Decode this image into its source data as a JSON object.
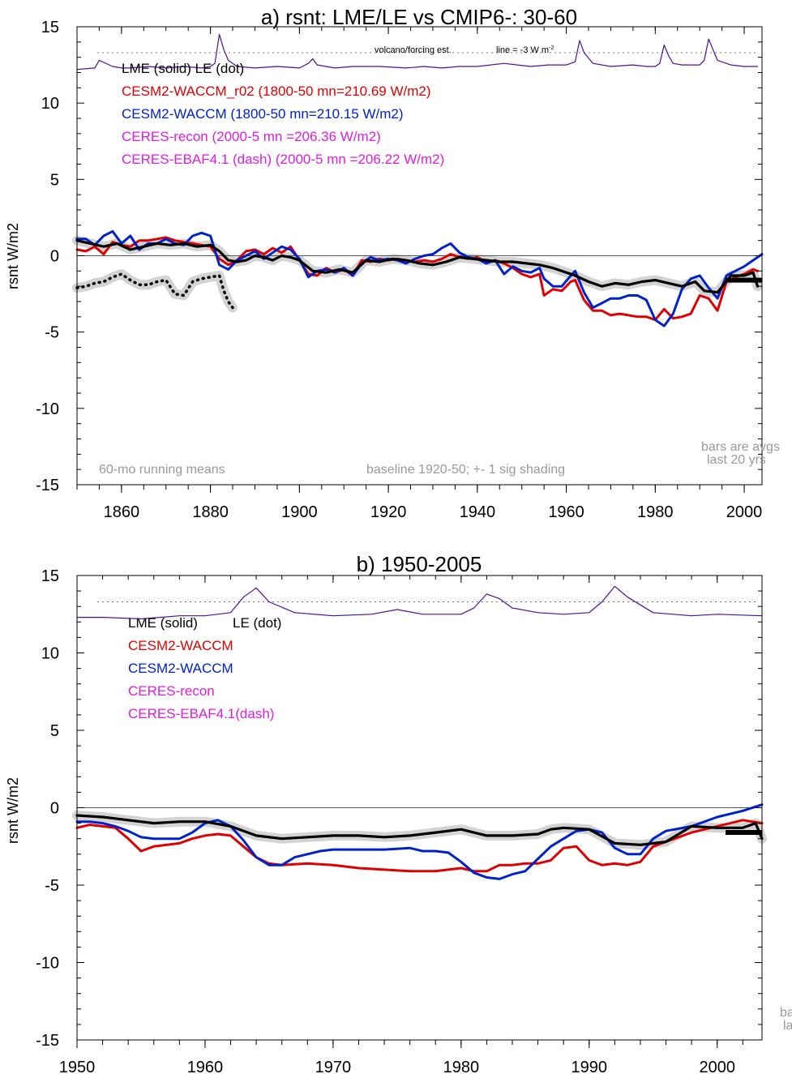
{
  "colors": {
    "lme": "#000000",
    "r02": "#e00000",
    "cesm2": "#0022cc",
    "ceres": "#e01ce0",
    "volcano": "#4b0fa0",
    "zero": "#555555",
    "dotline": "#777777",
    "note": "#999999",
    "shade": "#c8c8c8"
  },
  "chart_data": [
    {
      "type": "line",
      "title": "a) rsnt: LME/LE vs CMIP6-: 30-60",
      "ylabel": "rsnt W/m2",
      "xlim": [
        1850,
        2004
      ],
      "ylim": [
        -15,
        15
      ],
      "xticks": [
        1860,
        1880,
        1900,
        1920,
        1940,
        1960,
        1980,
        2000
      ],
      "yticks": [
        -15,
        -10,
        -5,
        0,
        5,
        10,
        15
      ],
      "grid": false,
      "legend_placement": "top-left",
      "legend": [
        {
          "text": "LME (solid)   LE (dot)",
          "color": "#000000"
        },
        {
          "text": "CESM2-WACCM_r02 (1800-50 mn=210.69 W/m2)",
          "color": "#e00000"
        },
        {
          "text": "CESM2-WACCM (1800-50 mn=210.15 W/m2)",
          "color": "#0022cc"
        },
        {
          "text": "CERES-recon (2000-5 mn =206.36 W/m2)",
          "color": "#e01ce0"
        },
        {
          "text": "CERES-EBAF4.1 (dash) (2000-5 mn =206.22 W/m2)",
          "color": "#e01ce0"
        }
      ],
      "annotations": {
        "volcano_label": "volcano/forcing est.",
        "line_label": "line = -3 W m",
        "line_label_sup": "-2",
        "running_means": "60-mo running means",
        "baseline": "baseline 1920-50; +- 1 sig shading",
        "bars_line1": "bars are avgs",
        "bars_line2": "last 20 yrs"
      },
      "dotted_reference_y": 13.3,
      "bar_avg_y": -1.6,
      "series": [
        {
          "key": "volcano",
          "style": "solid",
          "x": [
            1850,
            1854,
            1855,
            1858,
            1860,
            1862,
            1866,
            1870,
            1874,
            1878,
            1880,
            1881,
            1882,
            1883,
            1884,
            1886,
            1890,
            1895,
            1900,
            1902,
            1903,
            1904,
            1908,
            1912,
            1918,
            1924,
            1928,
            1932,
            1936,
            1940,
            1946,
            1952,
            1956,
            1960,
            1962,
            1963,
            1964,
            1966,
            1970,
            1975,
            1978,
            1980,
            1981,
            1982,
            1983,
            1984,
            1986,
            1990,
            1991,
            1992,
            1993,
            1994,
            1997,
            2000,
            2003
          ],
          "y": [
            12.2,
            12.3,
            12.8,
            12.4,
            12.3,
            12.3,
            12.4,
            12.3,
            12.4,
            12.3,
            12.4,
            12.6,
            14.5,
            13.5,
            12.8,
            12.4,
            12.3,
            12.4,
            12.3,
            12.6,
            12.9,
            12.5,
            12.3,
            12.4,
            12.4,
            12.3,
            12.4,
            12.3,
            12.4,
            12.4,
            12.6,
            12.4,
            12.5,
            12.5,
            12.7,
            14.1,
            13.3,
            12.6,
            12.4,
            12.5,
            12.4,
            12.4,
            12.6,
            13.8,
            13.1,
            12.6,
            12.5,
            12.5,
            12.8,
            14.2,
            13.5,
            12.8,
            12.5,
            12.4,
            12.4
          ]
        },
        {
          "key": "r02",
          "style": "solid",
          "x": [
            1850,
            1852,
            1854,
            1856,
            1858,
            1860,
            1862,
            1864,
            1866,
            1868,
            1870,
            1872,
            1874,
            1876,
            1878,
            1880,
            1882,
            1884,
            1886,
            1888,
            1890,
            1892,
            1894,
            1896,
            1898,
            1900,
            1902,
            1904,
            1906,
            1908,
            1910,
            1912,
            1914,
            1916,
            1918,
            1920,
            1922,
            1924,
            1926,
            1928,
            1930,
            1932,
            1934,
            1936,
            1938,
            1940,
            1942,
            1944,
            1946,
            1948,
            1950,
            1952,
            1954,
            1955,
            1957,
            1959,
            1961,
            1962,
            1964,
            1966,
            1968,
            1970,
            1972,
            1974,
            1976,
            1978,
            1980,
            1982,
            1984,
            1986,
            1988,
            1990,
            1992,
            1994,
            1996,
            1998,
            2000,
            2002,
            2003
          ],
          "y": [
            0.4,
            0.3,
            0.6,
            0.1,
            0.9,
            0.7,
            0.6,
            1.0,
            1.0,
            1.1,
            1.2,
            1.0,
            0.9,
            0.8,
            0.7,
            0.6,
            -0.2,
            -0.6,
            -0.3,
            0.3,
            0.4,
            0.1,
            0.5,
            0.2,
            0.6,
            -0.3,
            -1.2,
            -1.3,
            -0.8,
            -1.1,
            -0.9,
            -1.3,
            -0.3,
            -0.4,
            -0.2,
            -0.3,
            -0.2,
            -0.3,
            -0.4,
            -0.3,
            -0.4,
            -0.2,
            0.1,
            -0.1,
            -0.2,
            -0.1,
            -0.4,
            -0.3,
            -0.5,
            -0.8,
            -1.2,
            -1.4,
            -1.2,
            -2.6,
            -2.2,
            -2.3,
            -1.7,
            -1.6,
            -2.9,
            -3.6,
            -3.6,
            -3.9,
            -3.8,
            -3.9,
            -4.0,
            -4.0,
            -4.2,
            -3.5,
            -4.1,
            -4.0,
            -3.8,
            -2.6,
            -2.8,
            -3.6,
            -1.7,
            -1.4,
            -1.2,
            -0.9,
            -1.0
          ]
        },
        {
          "key": "cesm2",
          "style": "solid",
          "x": [
            1850,
            1852,
            1854,
            1856,
            1858,
            1860,
            1862,
            1864,
            1866,
            1868,
            1870,
            1872,
            1874,
            1876,
            1878,
            1880,
            1882,
            1884,
            1886,
            1888,
            1890,
            1892,
            1894,
            1896,
            1898,
            1900,
            1902,
            1904,
            1906,
            1908,
            1910,
            1912,
            1914,
            1916,
            1918,
            1920,
            1922,
            1924,
            1926,
            1928,
            1930,
            1932,
            1934,
            1936,
            1938,
            1940,
            1942,
            1944,
            1946,
            1948,
            1950,
            1952,
            1954,
            1955,
            1957,
            1959,
            1961,
            1962,
            1964,
            1966,
            1968,
            1970,
            1972,
            1974,
            1976,
            1978,
            1980,
            1982,
            1984,
            1986,
            1988,
            1990,
            1992,
            1994,
            1996,
            1998,
            2000,
            2002,
            2004
          ],
          "y": [
            1.1,
            1.1,
            0.7,
            1.3,
            1.6,
            0.8,
            1.3,
            0.4,
            0.8,
            0.8,
            1.1,
            0.8,
            0.7,
            1.3,
            1.5,
            1.3,
            -0.6,
            -0.9,
            -0.3,
            0.0,
            0.3,
            -0.2,
            0.2,
            0.6,
            0.4,
            -0.2,
            -1.4,
            -1.0,
            -0.9,
            -1.1,
            -0.8,
            -1.3,
            -0.5,
            -0.1,
            -0.3,
            -0.2,
            -0.3,
            -0.5,
            -0.2,
            0.0,
            0.1,
            0.5,
            0.8,
            0.2,
            -0.1,
            -0.2,
            -0.5,
            -0.3,
            -1.2,
            -0.7,
            -1.0,
            -1.1,
            -0.8,
            -1.5,
            -2.0,
            -2.0,
            -1.3,
            -1.0,
            -2.4,
            -3.4,
            -3.1,
            -2.8,
            -2.8,
            -2.6,
            -2.6,
            -2.9,
            -4.2,
            -4.6,
            -3.8,
            -2.2,
            -1.5,
            -1.3,
            -2.1,
            -2.8,
            -1.3,
            -1.0,
            -0.7,
            -0.3,
            0.1
          ]
        },
        {
          "key": "lme",
          "style": "solid",
          "x": [
            1850,
            1853,
            1856,
            1859,
            1862,
            1865,
            1868,
            1871,
            1874,
            1877,
            1880,
            1882,
            1884,
            1886,
            1888,
            1890,
            1892,
            1894,
            1896,
            1898,
            1900,
            1903,
            1906,
            1909,
            1912,
            1915,
            1918,
            1921,
            1924,
            1927,
            1930,
            1933,
            1936,
            1939,
            1942,
            1945,
            1948,
            1951,
            1954,
            1957,
            1960,
            1962,
            1965,
            1968,
            1971,
            1974,
            1977,
            1980,
            1983,
            1986,
            1989,
            1991,
            1994,
            1997,
            2000,
            2002,
            2003
          ],
          "y": [
            1.0,
            0.8,
            0.6,
            0.8,
            0.4,
            0.6,
            0.8,
            0.7,
            0.8,
            0.6,
            0.7,
            0.3,
            -0.3,
            -0.4,
            -0.3,
            0.0,
            -0.1,
            -0.3,
            0.0,
            -0.1,
            -0.3,
            -1.0,
            -1.1,
            -0.9,
            -1.1,
            -0.3,
            -0.4,
            -0.2,
            -0.3,
            -0.5,
            -0.6,
            -0.4,
            -0.1,
            -0.2,
            -0.3,
            -0.4,
            -0.4,
            -0.5,
            -0.6,
            -0.8,
            -1.1,
            -1.3,
            -1.7,
            -2.0,
            -1.8,
            -1.9,
            -1.7,
            -1.6,
            -1.8,
            -2.0,
            -1.7,
            -2.3,
            -2.4,
            -1.3,
            -1.3,
            -1.1,
            -2.0
          ]
        },
        {
          "key": "le",
          "style": "dot",
          "x": [
            1850,
            1852,
            1854,
            1856,
            1858,
            1860,
            1862,
            1864,
            1866,
            1868,
            1870,
            1872,
            1874,
            1876,
            1878,
            1880,
            1882,
            1883,
            1884,
            1885
          ],
          "y": [
            -2.1,
            -2.0,
            -1.8,
            -1.7,
            -1.4,
            -1.2,
            -1.6,
            -1.9,
            -1.9,
            -1.7,
            -1.6,
            -2.5,
            -2.6,
            -1.7,
            -1.5,
            -1.4,
            -1.3,
            -2.3,
            -3.0,
            -3.4
          ]
        }
      ]
    },
    {
      "type": "line",
      "title": "b) 1950-2005",
      "ylabel": "rsnt W/m2",
      "xlim": [
        1950,
        2003.5
      ],
      "ylim": [
        -15,
        15
      ],
      "xticks": [
        1950,
        1960,
        1970,
        1980,
        1990,
        2000
      ],
      "yticks": [
        -15,
        -10,
        -5,
        0,
        5,
        10,
        15
      ],
      "grid": false,
      "legend_placement": "top-left",
      "legend": [
        {
          "text": "LME (solid)",
          "color": "#000000"
        },
        {
          "text": "LE (dot)",
          "color": "#000000"
        },
        {
          "text": "CESM2-WACCM",
          "color": "#e00000"
        },
        {
          "text": "CESM2-WACCM",
          "color": "#0022cc"
        },
        {
          "text": "CERES-recon",
          "color": "#e01ce0"
        },
        {
          "text": "CERES-EBAF4.1(dash)",
          "color": "#e01ce0"
        }
      ],
      "annotations": {
        "bars_line1": "ba",
        "bars_line2": "la"
      },
      "dotted_reference_y": 13.3,
      "bar_avg_y": -1.6,
      "series": [
        {
          "key": "volcano",
          "style": "solid",
          "x": [
            1950,
            1952,
            1955,
            1958,
            1960,
            1962,
            1963,
            1964,
            1965,
            1967,
            1970,
            1973,
            1975,
            1977,
            1980,
            1981,
            1982,
            1983,
            1984,
            1986,
            1988,
            1990,
            1991,
            1992,
            1993,
            1995,
            1998,
            2000,
            2003.5
          ],
          "y": [
            12.3,
            12.3,
            12.2,
            12.4,
            12.4,
            12.6,
            13.6,
            14.2,
            13.3,
            12.6,
            12.4,
            12.5,
            12.8,
            12.5,
            12.5,
            12.9,
            13.8,
            13.5,
            12.9,
            12.6,
            12.5,
            12.6,
            13.3,
            14.3,
            13.6,
            12.6,
            12.4,
            12.5,
            12.4
          ]
        },
        {
          "key": "r02",
          "style": "solid",
          "x": [
            1950,
            1951,
            1953,
            1954,
            1955,
            1956,
            1958,
            1959,
            1960,
            1961,
            1962,
            1963,
            1964,
            1965,
            1966,
            1968,
            1970,
            1972,
            1974,
            1976,
            1978,
            1980,
            1981,
            1982,
            1983,
            1984,
            1985,
            1986,
            1987,
            1988,
            1989,
            1990,
            1991,
            1992,
            1993,
            1994,
            1995,
            1996,
            1998,
            2000,
            2002,
            2003.5
          ],
          "y": [
            -1.3,
            -1.1,
            -1.3,
            -2.0,
            -2.8,
            -2.5,
            -2.3,
            -2.0,
            -1.8,
            -1.7,
            -1.8,
            -2.5,
            -3.2,
            -3.6,
            -3.7,
            -3.6,
            -3.7,
            -3.9,
            -4.0,
            -4.1,
            -4.1,
            -3.9,
            -4.1,
            -4.1,
            -3.7,
            -3.7,
            -3.6,
            -3.6,
            -3.4,
            -2.6,
            -2.5,
            -3.4,
            -3.7,
            -3.6,
            -3.7,
            -3.5,
            -2.5,
            -2.2,
            -1.6,
            -1.2,
            -0.8,
            -1.0
          ]
        },
        {
          "key": "cesm2",
          "style": "solid",
          "x": [
            1950,
            1951,
            1952,
            1953,
            1954,
            1955,
            1956,
            1958,
            1959,
            1960,
            1961,
            1962,
            1963,
            1964,
            1965,
            1966,
            1967,
            1968,
            1969,
            1970,
            1972,
            1974,
            1976,
            1977,
            1978,
            1979,
            1980,
            1981,
            1982,
            1983,
            1984,
            1985,
            1986,
            1987,
            1988,
            1989,
            1990,
            1991,
            1992,
            1993,
            1994,
            1995,
            1996,
            1998,
            2000,
            2002,
            2003.5
          ],
          "y": [
            -0.9,
            -0.9,
            -1.0,
            -1.2,
            -1.5,
            -1.9,
            -2.0,
            -2.0,
            -1.6,
            -1.0,
            -0.8,
            -1.2,
            -2.1,
            -3.2,
            -3.7,
            -3.7,
            -3.2,
            -3.0,
            -2.8,
            -2.7,
            -2.7,
            -2.7,
            -2.6,
            -2.8,
            -2.8,
            -2.9,
            -3.5,
            -4.2,
            -4.5,
            -4.6,
            -4.3,
            -4.1,
            -3.3,
            -2.5,
            -2.0,
            -1.5,
            -1.4,
            -1.6,
            -2.6,
            -3.0,
            -3.0,
            -2.0,
            -1.5,
            -1.2,
            -0.6,
            -0.2,
            0.2
          ]
        },
        {
          "key": "lme",
          "style": "solid",
          "x": [
            1950,
            1952,
            1954,
            1956,
            1958,
            1960,
            1962,
            1964,
            1966,
            1968,
            1970,
            1972,
            1974,
            1976,
            1978,
            1980,
            1982,
            1984,
            1986,
            1987,
            1988,
            1990,
            1992,
            1994,
            1996,
            1998,
            2000,
            2002,
            2003,
            2003.5
          ],
          "y": [
            -0.5,
            -0.6,
            -0.8,
            -1.0,
            -0.9,
            -0.9,
            -1.2,
            -1.8,
            -2.0,
            -1.9,
            -1.8,
            -1.8,
            -1.9,
            -1.8,
            -1.6,
            -1.4,
            -1.8,
            -1.8,
            -1.7,
            -1.4,
            -1.3,
            -1.4,
            -2.3,
            -2.4,
            -2.2,
            -1.2,
            -1.3,
            -1.3,
            -1.0,
            -2.0
          ]
        }
      ]
    }
  ]
}
